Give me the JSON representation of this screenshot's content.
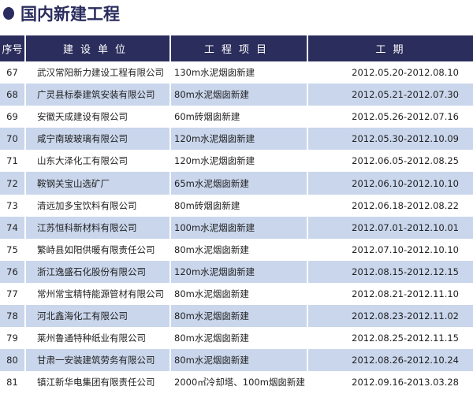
{
  "title": "国内新建工程",
  "headers": [
    "序号",
    "建设单位",
    "工程项目",
    "工期"
  ],
  "rows": [
    [
      "67",
      "武汉常阳新力建设工程有限公司",
      "130m水泥烟囱新建",
      "2012.05.20-2012.08.10"
    ],
    [
      "68",
      "广灵县标泰建筑安装有限公司",
      "80m水泥烟囱新建",
      "2012.05.21-2012.07.30"
    ],
    [
      "69",
      "安徽天成建设有限公司",
      "60m砖烟囱新建",
      "2012.05.26-2012.07.16"
    ],
    [
      "70",
      "咸宁南玻玻璃有限公司",
      "120m水泥烟囱新建",
      "2012.05.30-2012.10.09"
    ],
    [
      "71",
      "山东大泽化工有限公司",
      "120m水泥烟囱新建",
      "2012.06.05-2012.08.25"
    ],
    [
      "72",
      "鞍钢关宝山选矿厂",
      "65m水泥烟囱新建",
      "2012.06.10-2012.10.10"
    ],
    [
      "73",
      "清远加多宝饮料有限公司",
      "80m砖烟囱新建",
      "2012.06.18-2012.08.22"
    ],
    [
      "74",
      "江苏恒科新材料有限公司",
      "100m水泥烟囱新建",
      "2012.07.01-2012.10.01"
    ],
    [
      "75",
      "繁峙县如阳供暖有限责任公司",
      "80m水泥烟囱新建",
      "2012.07.10-2012.10.10"
    ],
    [
      "76",
      "浙江逸盛石化股份有限公司",
      "120m水泥烟囱新建",
      "2012.08.15-2012.12.15"
    ],
    [
      "77",
      "常州常宝精特能源管材有限公司",
      "80m水泥烟囱新建",
      "2012.08.21-2012.11.10"
    ],
    [
      "78",
      "河北鑫海化工有限公司",
      "80m水泥烟囱新建",
      "2012.08.23-2012.11.02"
    ],
    [
      "79",
      "莱州鲁通特种纸业有限公司",
      "80m水泥烟囱新建",
      "2012.08.25-2012.11.15"
    ],
    [
      "80",
      "甘肃一安装建筑劳务有限公司",
      "80m水泥烟囱新建",
      "2012.08.26-2012.10.24"
    ],
    [
      "81",
      "镇江新华电集团有限责任公司",
      "2000㎡冷却塔、100m烟囱新建",
      "2012.09.16-2013.03.28"
    ]
  ],
  "colors": {
    "header": "#2b2d5c",
    "stripe": "#c9d6ec"
  }
}
